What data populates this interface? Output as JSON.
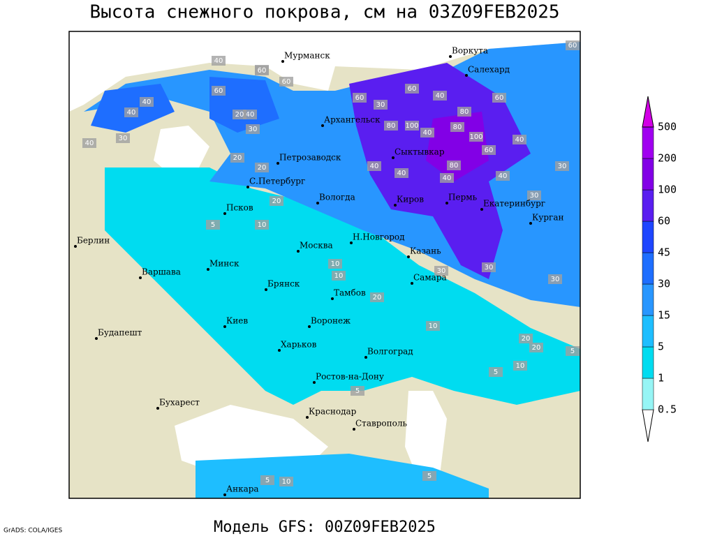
{
  "title": "Высота снежного покрова, см на 03Z09FEB2025",
  "footer": "Модель GFS: 00Z09FEB2025",
  "credit": "GrADS: COLA/IGES",
  "legend": {
    "levels": [
      0.5,
      1,
      5,
      15,
      30,
      45,
      60,
      100,
      200,
      500
    ],
    "colors": [
      "#ffffff",
      "#96f5f5",
      "#00dcf0",
      "#1ebeff",
      "#2896ff",
      "#1e6eff",
      "#1e46ff",
      "#5a1ef0",
      "#8200e6",
      "#a000f0",
      "#d200e6"
    ]
  },
  "cities": [
    "Мурманск",
    "Воркута",
    "Салехард",
    "Архангельск",
    "Сыктывкар",
    "Петрозаводск",
    "С.Петербург",
    "Вологда",
    "Киров",
    "Пермь",
    "Екатеринбург",
    "Курган",
    "Псков",
    "Берлин",
    "Н.Новгород",
    "Москва",
    "Казань",
    "Минск",
    "Варшава",
    "Самара",
    "Брянск",
    "Тамбов",
    "Киев",
    "Воронеж",
    "Будапешт",
    "Харьков",
    "Волгоград",
    "Ростов-на-Дону",
    "Бухарест",
    "Краснодар",
    "Ставрополь",
    "Анкара"
  ],
  "contour_labels": [
    40,
    60,
    40,
    40,
    60,
    40,
    20,
    40,
    30,
    20,
    30,
    20,
    60,
    60,
    30,
    60,
    80,
    100,
    40,
    80,
    100,
    40,
    80,
    60,
    40,
    40,
    30,
    20,
    10,
    5,
    10,
    40,
    80,
    60,
    30,
    30,
    20,
    30,
    10,
    20,
    10,
    5,
    20,
    5,
    10,
    10,
    5,
    5,
    5,
    60,
    60,
    40,
    40,
    30
  ]
}
